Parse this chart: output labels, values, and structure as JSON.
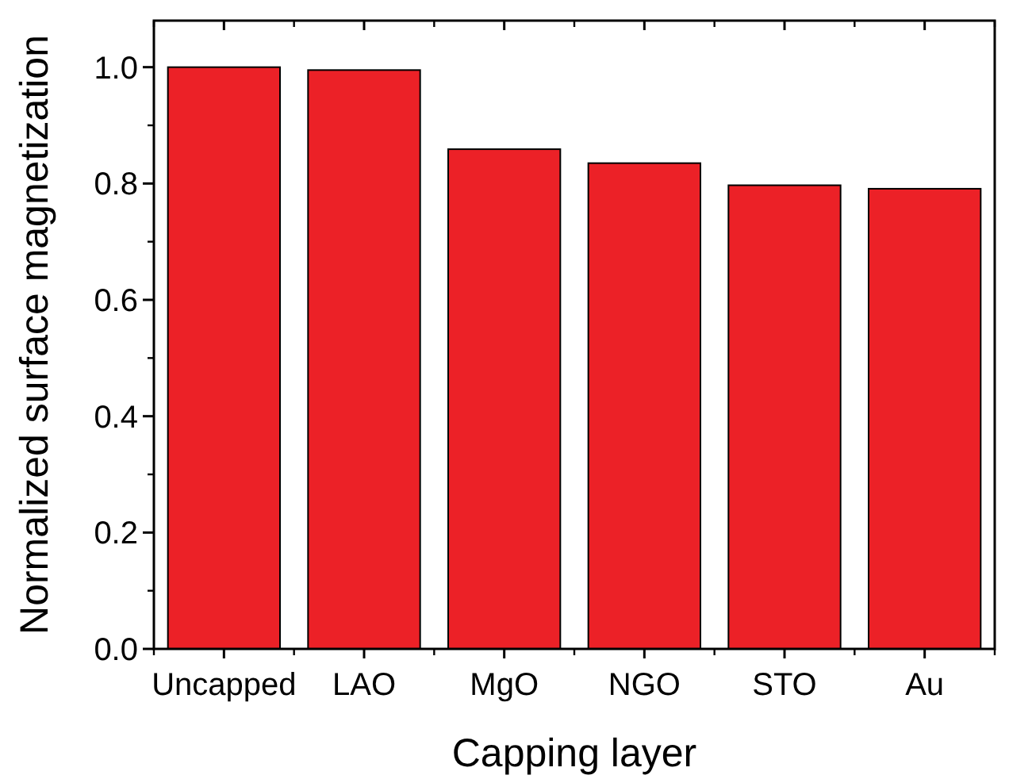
{
  "chart_data": {
    "type": "bar",
    "xlabel": "Capping layer",
    "ylabel": "Normalized surface magnetization",
    "categories": [
      "Uncapped",
      "LAO",
      "MgO",
      "NGO",
      "STO",
      "Au"
    ],
    "values": [
      1.0,
      0.995,
      0.859,
      0.835,
      0.797,
      0.791
    ],
    "color": "#ec2127",
    "ylim": [
      0,
      1.08
    ],
    "yticks": [
      {
        "value": 0,
        "label": "0.0"
      },
      0.2,
      0.4,
      0.6,
      0.8,
      {
        "value": 1,
        "label": "1.0"
      }
    ],
    "grid": false
  }
}
